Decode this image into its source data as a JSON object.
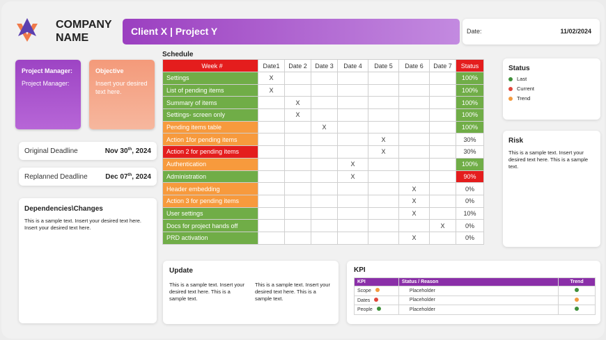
{
  "header": {
    "company": "COMPANY\nNAME",
    "client": "Client X | Project Y",
    "date_label": "Date:",
    "date_value": "11/02/2024"
  },
  "pm": {
    "title": "Project Manager:",
    "body": "Project Manager:"
  },
  "objective": {
    "title": "Objective",
    "body": "Insert your desired text here."
  },
  "deadlines": {
    "original_label": "Original Deadline",
    "original_value": "Nov 30",
    "original_sup": "th",
    "original_year": ", 2024",
    "replanned_label": "Replanned Deadline",
    "replanned_value": "Dec 07",
    "replanned_sup": "th",
    "replanned_year": ", 2024"
  },
  "dependencies": {
    "title": "Dependencies\\Changes",
    "body": "This is a sample text. Insert your desired text here. Insert your desired text here."
  },
  "schedule": {
    "title": "Schedule",
    "headers": [
      "Week #",
      "Date1",
      "Date 2",
      "Date 3",
      "Date 4",
      "Date 5",
      "Date 6",
      "Date 7",
      "Status"
    ],
    "colors": {
      "green": "#70ad47",
      "orange": "#f79a3d",
      "red": "#e41d1d",
      "status_green": "#70ad47",
      "status_red": "#e41d1d"
    },
    "rows": [
      {
        "task": "Settings",
        "color": "green",
        "marks": [
          1,
          0,
          0,
          0,
          0,
          0,
          0
        ],
        "status": "100%",
        "st": "green"
      },
      {
        "task": "List of pending items",
        "color": "green",
        "marks": [
          1,
          0,
          0,
          0,
          0,
          0,
          0
        ],
        "status": "100%",
        "st": "green"
      },
      {
        "task": "Summary of items",
        "color": "green",
        "marks": [
          0,
          1,
          0,
          0,
          0,
          0,
          0
        ],
        "status": "100%",
        "st": "green"
      },
      {
        "task": "Settings- screen only",
        "color": "green",
        "marks": [
          0,
          1,
          0,
          0,
          0,
          0,
          0
        ],
        "status": "100%",
        "st": "green"
      },
      {
        "task": "Pending items table",
        "color": "orange",
        "marks": [
          0,
          0,
          1,
          0,
          0,
          0,
          0
        ],
        "status": "100%",
        "st": "green"
      },
      {
        "task": "Action 1for pending items",
        "color": "orange",
        "marks": [
          0,
          0,
          0,
          0,
          1,
          0,
          0
        ],
        "status": "30%",
        "st": "none"
      },
      {
        "task": "Action 2 for pending items",
        "color": "red",
        "marks": [
          0,
          0,
          0,
          0,
          1,
          0,
          0
        ],
        "status": "30%",
        "st": "none"
      },
      {
        "task": "Authentication",
        "color": "orange",
        "marks": [
          0,
          0,
          0,
          1,
          0,
          0,
          0
        ],
        "status": "100%",
        "st": "green"
      },
      {
        "task": "Administration",
        "color": "green",
        "marks": [
          0,
          0,
          0,
          1,
          0,
          0,
          0
        ],
        "status": "90%",
        "st": "red"
      },
      {
        "task": "Header embedding",
        "color": "orange",
        "marks": [
          0,
          0,
          0,
          0,
          0,
          1,
          0
        ],
        "status": "0%",
        "st": "none"
      },
      {
        "task": "Action 3 for pending items",
        "color": "orange",
        "marks": [
          0,
          0,
          0,
          0,
          0,
          1,
          0
        ],
        "status": "0%",
        "st": "none"
      },
      {
        "task": "User settings",
        "color": "green",
        "marks": [
          0,
          0,
          0,
          0,
          0,
          1,
          0
        ],
        "status": "10%",
        "st": "none"
      },
      {
        "task": "Docs for project hands off",
        "color": "green",
        "marks": [
          0,
          0,
          0,
          0,
          0,
          0,
          1
        ],
        "status": "0%",
        "st": "none"
      },
      {
        "task": "PRD activation",
        "color": "green",
        "marks": [
          0,
          0,
          0,
          0,
          0,
          1,
          0
        ],
        "status": "0%",
        "st": "none"
      }
    ],
    "mark": "X"
  },
  "status_legend": {
    "title": "Status",
    "items": [
      {
        "label": "Last",
        "color": "#3f8f3a"
      },
      {
        "label": "Current",
        "color": "#e0453a"
      },
      {
        "label": "Trend",
        "color": "#f29a3f"
      }
    ]
  },
  "risk": {
    "title": "Risk",
    "body": "This is a sample text. Insert your desired text here. This is a sample text."
  },
  "update": {
    "title": "Update",
    "col1": "This is a sample text. Insert your desired text here. This is a sample text.",
    "col2": "This is a sample text. Insert your desired text here. This is a sample text."
  },
  "kpi": {
    "title": "KPI",
    "headers": [
      "KPI",
      "Status / Reason",
      "Trend"
    ],
    "rows": [
      {
        "name": "Scope",
        "dot": "#f29a3f",
        "reason": "Placeholder",
        "trend": "#3f8f3a"
      },
      {
        "name": "Dates",
        "dot": "#e0453a",
        "reason": "Placeholder",
        "trend": "#f29a3f"
      },
      {
        "name": "People",
        "dot": "#3f8f3a",
        "reason": "Placeholder",
        "trend": "#3f8f3a"
      }
    ]
  }
}
